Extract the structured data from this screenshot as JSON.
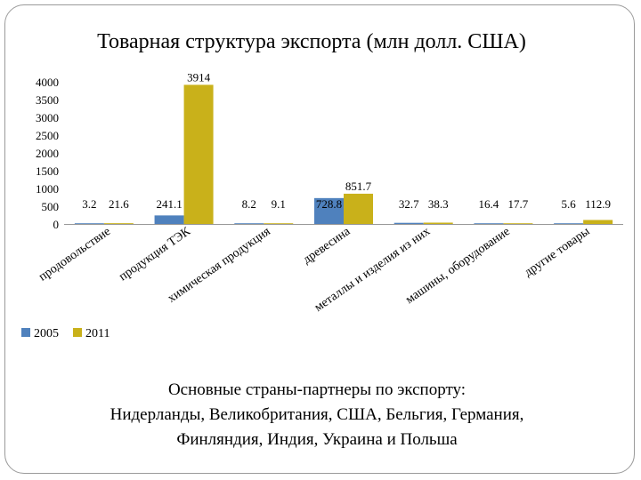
{
  "slide": {
    "title": "Товарная структура экспорта (млн долл. США)",
    "caption_lines": [
      "Основные страны-партнеры по экспорту:",
      "Нидерланды, Великобритания, США, Бельгия, Германия,",
      "Финляндия, Индия, Украина и Польша"
    ]
  },
  "chart_data": {
    "type": "bar",
    "title": "Товарная структура экспорта (млн долл. США)",
    "xlabel": "",
    "ylabel": "",
    "ylim": [
      0,
      4000
    ],
    "yticks": [
      0,
      500,
      1000,
      1500,
      2000,
      2500,
      3000,
      3500,
      4000
    ],
    "grid": false,
    "legend": "bottom-left",
    "categories": [
      "продовольствие",
      "продукция ТЭК",
      "химическая продукция",
      "древесина",
      "металлы и изделия из них",
      "машины, оборудование",
      "другие товары"
    ],
    "series": [
      {
        "name": "2005",
        "color": "#4f81bd",
        "values": [
          3.2,
          241.1,
          8.2,
          728.8,
          32.7,
          16.4,
          5.6
        ],
        "labels": [
          "3.2",
          "241.1",
          "8.2",
          "728.8",
          "32.7",
          "16.4",
          "5.6"
        ]
      },
      {
        "name": "2011",
        "color": "#c9b11a",
        "values": [
          21.6,
          3914,
          9.1,
          851.7,
          38.3,
          17.7,
          112.9
        ],
        "labels": [
          "21.6",
          "3914",
          "9.1",
          "851.7",
          "38.3",
          "17.7",
          "112.9"
        ]
      }
    ]
  }
}
